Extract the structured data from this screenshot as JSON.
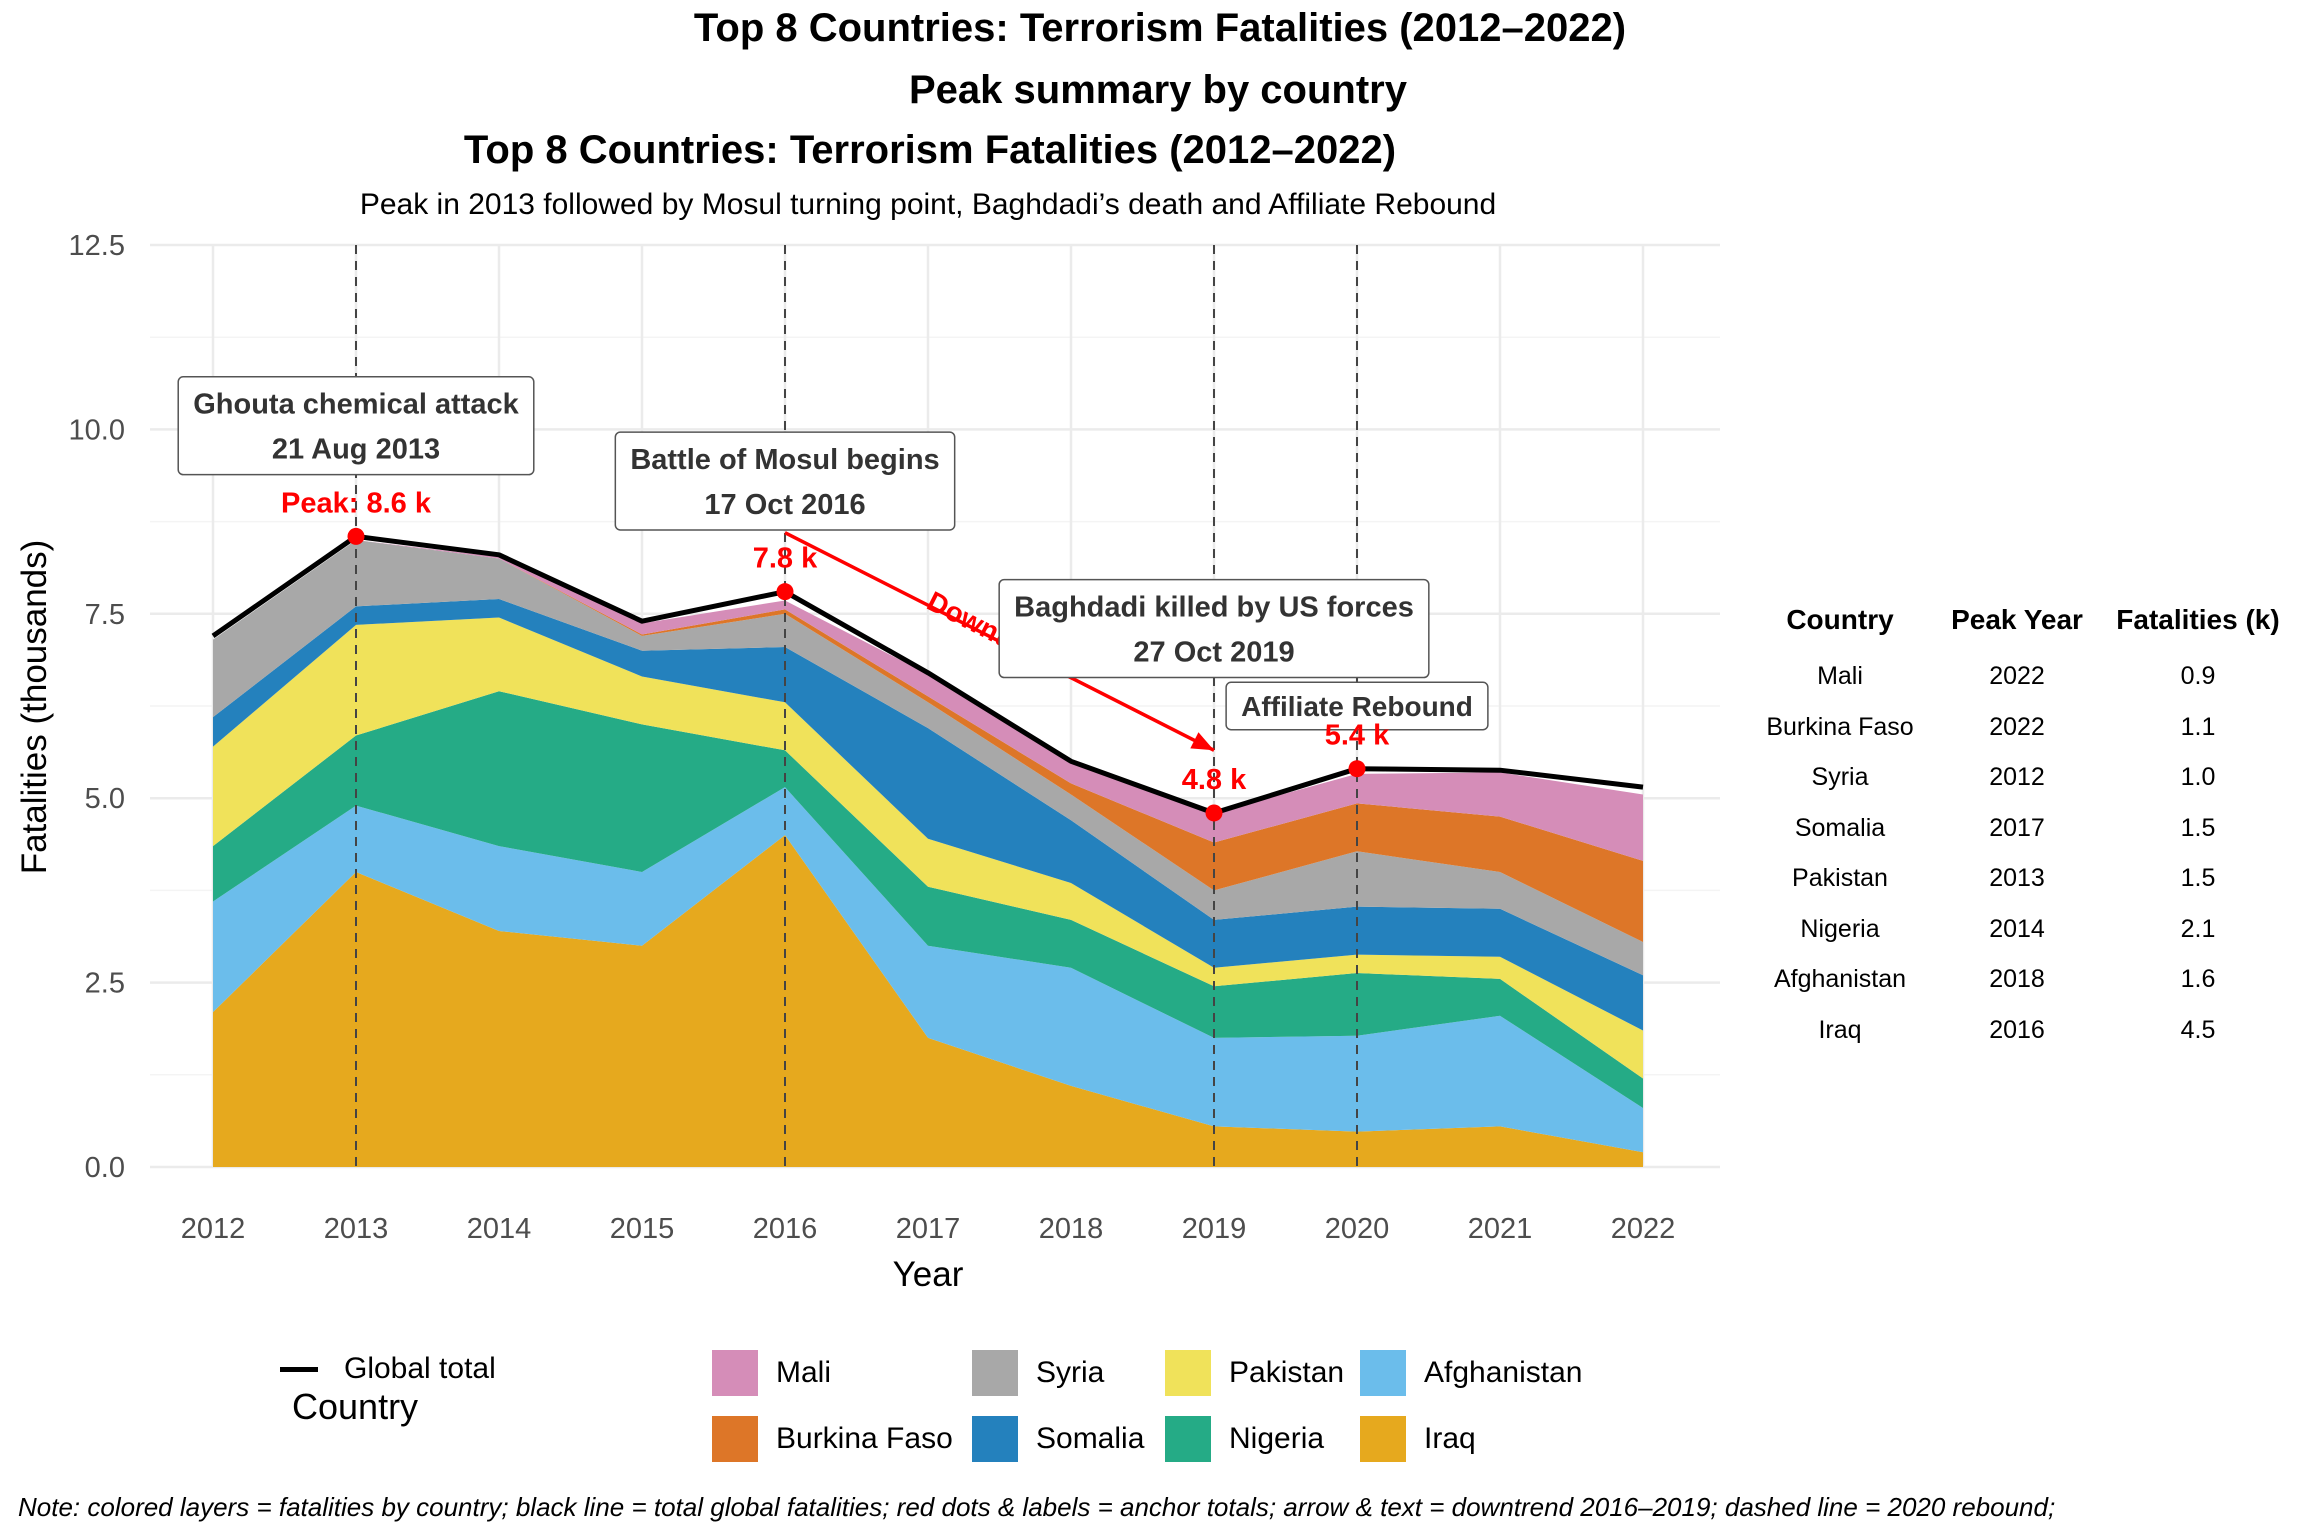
{
  "titles": {
    "main": "Top 8 Countries: Terrorism Fatalities (2012–2022)",
    "table_title": "Peak summary by country",
    "chart_title": "Top 8 Countries: Terrorism Fatalities (2012–2022)",
    "chart_subtitle": "Peak in 2013 followed by Mosul turning point, Baghdadi’s death and Affiliate Rebound"
  },
  "chart_data": {
    "type": "area",
    "title": "Top 8 Countries: Terrorism Fatalities (2012–2022)",
    "subtitle": "Peak in 2013 followed by Mosul turning point, Baghdadi’s death and Affiliate Rebound",
    "xlabel": "Year",
    "ylabel": "Fatalities (thousands)",
    "x": [
      2012,
      2013,
      2014,
      2015,
      2016,
      2017,
      2018,
      2019,
      2020,
      2021,
      2022
    ],
    "ylim": [
      0,
      12.5
    ],
    "yticks": [
      0.0,
      2.5,
      5.0,
      7.5,
      10.0,
      12.5
    ],
    "ytick_labels": [
      "0.0",
      "2.5",
      "5.0",
      "7.5",
      "10.0",
      "12.5"
    ],
    "stacked": true,
    "grid": true,
    "legend_title": "Country",
    "legend_position": "bottom",
    "series": [
      {
        "name": "Iraq",
        "color": "#E6A91E",
        "values": [
          2.1,
          4.0,
          3.2,
          3.0,
          4.5,
          1.75,
          1.1,
          0.55,
          0.48,
          0.55,
          0.2
        ]
      },
      {
        "name": "Afghanistan",
        "color": "#6BBDEB",
        "values": [
          1.5,
          0.9,
          1.15,
          1.0,
          0.65,
          1.25,
          1.6,
          1.2,
          1.3,
          1.5,
          0.6
        ]
      },
      {
        "name": "Nigeria",
        "color": "#25AB86",
        "values": [
          0.75,
          0.95,
          2.1,
          2.0,
          0.5,
          0.8,
          0.65,
          0.7,
          0.85,
          0.5,
          0.4
        ]
      },
      {
        "name": "Pakistan",
        "color": "#F0E25A",
        "values": [
          1.35,
          1.5,
          1.0,
          0.65,
          0.65,
          0.65,
          0.5,
          0.25,
          0.25,
          0.3,
          0.65
        ]
      },
      {
        "name": "Somalia",
        "color": "#2481BD",
        "values": [
          0.4,
          0.25,
          0.25,
          0.35,
          0.75,
          1.5,
          0.85,
          0.65,
          0.65,
          0.65,
          0.75
        ]
      },
      {
        "name": "Syria",
        "color": "#A8A8A8",
        "values": [
          1.05,
          0.9,
          0.55,
          0.2,
          0.45,
          0.35,
          0.35,
          0.4,
          0.75,
          0.5,
          0.45
        ]
      },
      {
        "name": "Burkina Faso",
        "color": "#DD7628",
        "values": [
          0.0,
          0.0,
          0.0,
          0.02,
          0.06,
          0.08,
          0.15,
          0.65,
          0.65,
          0.75,
          1.1
        ]
      },
      {
        "name": "Mali",
        "color": "#D58DB8",
        "values": [
          0.0,
          0.0,
          0.02,
          0.15,
          0.12,
          0.3,
          0.3,
          0.4,
          0.4,
          0.6,
          0.9
        ]
      }
    ],
    "total_line": {
      "name": "Global total",
      "color": "#000000",
      "values": [
        7.2,
        8.55,
        8.3,
        7.4,
        7.8,
        6.7,
        5.5,
        4.8,
        5.4,
        5.38,
        5.15
      ]
    },
    "vlines": [
      2013,
      2016,
      2019,
      2020
    ],
    "anchor_points": [
      {
        "x": 2013,
        "y": 8.55,
        "label": "Peak: 8.6 k"
      },
      {
        "x": 2016,
        "y": 7.8,
        "label": "7.8 k"
      },
      {
        "x": 2019,
        "y": 4.8,
        "label": "4.8 k"
      },
      {
        "x": 2020,
        "y": 5.4,
        "label": "5.4 k"
      }
    ],
    "trend_arrow": {
      "from": [
        2016,
        8.6
      ],
      "to": [
        2019,
        5.65
      ],
      "label": "Downtrend",
      "color": "#FF0000"
    },
    "annotations": [
      {
        "x": 2013,
        "y": 10.05,
        "lines": [
          "Ghouta chemical attack",
          "21 Aug 2013"
        ]
      },
      {
        "x": 2016,
        "y": 9.3,
        "lines": [
          "Battle of Mosul begins",
          "17 Oct 2016"
        ]
      },
      {
        "x": 2019,
        "y": 7.3,
        "lines": [
          "Baghdadi killed by US forces",
          "27 Oct 2019"
        ]
      },
      {
        "x": 2020,
        "y": 6.25,
        "lines": [
          "Affiliate Rebound"
        ]
      }
    ]
  },
  "table": {
    "headers": [
      "Country",
      "Peak Year",
      "Fatalities (k)"
    ],
    "rows": [
      [
        "Mali",
        "2022",
        "0.9"
      ],
      [
        "Burkina Faso",
        "2022",
        "1.1"
      ],
      [
        "Syria",
        "2012",
        "1.0"
      ],
      [
        "Somalia",
        "2017",
        "1.5"
      ],
      [
        "Pakistan",
        "2013",
        "1.5"
      ],
      [
        "Nigeria",
        "2014",
        "2.1"
      ],
      [
        "Afghanistan",
        "2018",
        "1.6"
      ],
      [
        "Iraq",
        "2016",
        "4.5"
      ]
    ]
  },
  "legend": {
    "title": "Country",
    "line_label": "Global total",
    "items": [
      {
        "label": "Mali",
        "color": "#D58DB8"
      },
      {
        "label": "Burkina Faso",
        "color": "#DD7628"
      },
      {
        "label": "Syria",
        "color": "#A8A8A8"
      },
      {
        "label": "Somalia",
        "color": "#2481BD"
      },
      {
        "label": "Pakistan",
        "color": "#F0E25A"
      },
      {
        "label": "Nigeria",
        "color": "#25AB86"
      },
      {
        "label": "Afghanistan",
        "color": "#6BBDEB"
      },
      {
        "label": "Iraq",
        "color": "#E6A91E"
      }
    ]
  },
  "note": "Note: colored layers = fatalities by country; black line = total global fatalities; red dots & labels = anchor totals; arrow & text = downtrend 2016–2019; dashed line = 2020 rebound;"
}
